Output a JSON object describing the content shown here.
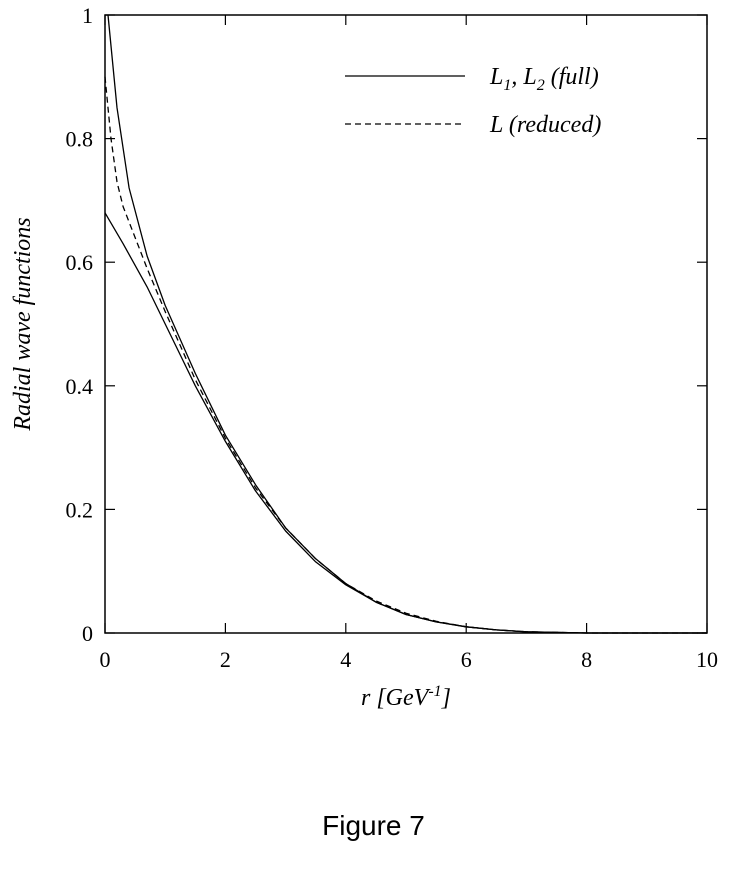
{
  "caption": "Figure 7",
  "chart_data": {
    "type": "line",
    "title": "",
    "xlabel": {
      "base": "r [GeV",
      "sup": "-1",
      "tail": "]"
    },
    "ylabel": "Radial wave functions",
    "xlim": [
      0,
      10
    ],
    "ylim": [
      0,
      1
    ],
    "xticks": [
      "0",
      "2",
      "4",
      "6",
      "8",
      "10"
    ],
    "yticks": [
      "0",
      "0.2",
      "0.4",
      "0.6",
      "0.8",
      "1"
    ],
    "grid": false,
    "legend_position": "top-right",
    "legend": [
      {
        "label": {
          "a": "L",
          "a_sub": "1",
          "sep": ", ",
          "b": "L",
          "b_sub": "2",
          "tail": " (full)"
        },
        "style": "solid"
      },
      {
        "label": {
          "a": "L",
          "tail": " (reduced)"
        },
        "style": "dashed"
      }
    ],
    "series": [
      {
        "style": "solid",
        "x": [
          0.05,
          0.2,
          0.4,
          0.7,
          1.0,
          1.5,
          2.0,
          2.5,
          3.0,
          3.5,
          4.0,
          4.5,
          5.0,
          5.5,
          6.0,
          6.5,
          7.0,
          7.5,
          8.0,
          9.0,
          10.0
        ],
        "y": [
          1.0,
          0.85,
          0.72,
          0.61,
          0.53,
          0.42,
          0.32,
          0.24,
          0.17,
          0.12,
          0.08,
          0.05,
          0.03,
          0.018,
          0.01,
          0.005,
          0.002,
          0.001,
          0.0,
          0.0,
          0.0
        ]
      },
      {
        "style": "solid",
        "x": [
          0.0,
          0.3,
          0.7,
          1.0,
          1.5,
          2.0,
          2.5,
          3.0,
          3.5,
          4.0,
          4.5,
          5.0,
          5.5,
          6.0,
          6.5,
          7.0,
          7.5,
          8.0,
          9.0,
          10.0
        ],
        "y": [
          0.68,
          0.63,
          0.56,
          0.5,
          0.4,
          0.31,
          0.23,
          0.165,
          0.115,
          0.078,
          0.05,
          0.03,
          0.018,
          0.01,
          0.005,
          0.002,
          0.001,
          0.0,
          0.0,
          0.0
        ]
      },
      {
        "style": "dashed",
        "x": [
          0.0,
          0.1,
          0.2,
          0.3,
          0.5,
          0.7,
          1.0,
          1.5,
          2.0,
          2.5,
          3.0,
          3.5,
          4.0,
          4.5,
          5.0,
          5.5,
          6.0,
          6.5,
          7.0,
          7.5,
          8.0,
          9.0,
          10.0
        ],
        "y": [
          0.9,
          0.8,
          0.73,
          0.69,
          0.64,
          0.59,
          0.52,
          0.41,
          0.315,
          0.235,
          0.17,
          0.12,
          0.08,
          0.052,
          0.032,
          0.019,
          0.01,
          0.005,
          0.002,
          0.001,
          0.0,
          0.0,
          0.0
        ]
      }
    ]
  }
}
